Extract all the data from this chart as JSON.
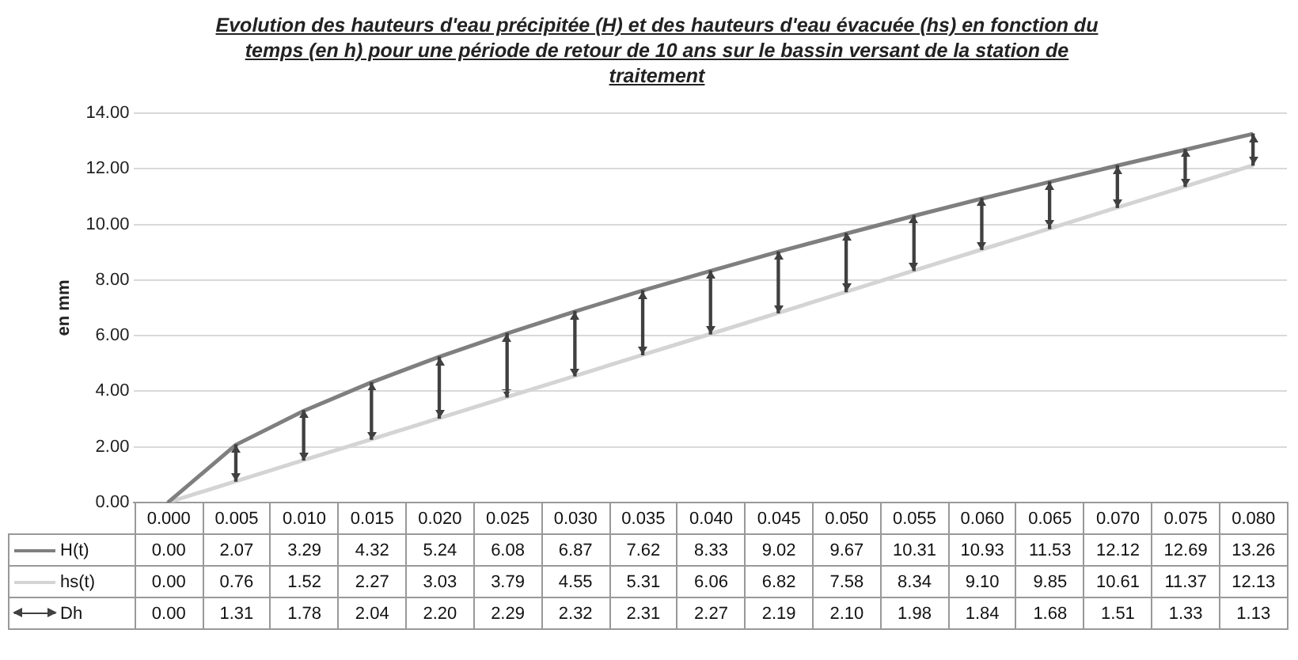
{
  "chart_data": {
    "type": "line",
    "title": "Evolution des hauteurs d'eau précipitée (H) et des hauteurs d'eau évacuée (hs) en fonction du temps  (en h) pour une période de retour de 10 ans sur le bassin versant de la station de traitement",
    "ylabel": "en mm",
    "categories": [
      "0.000",
      "0.005",
      "0.010",
      "0.015",
      "0.020",
      "0.025",
      "0.030",
      "0.035",
      "0.040",
      "0.045",
      "0.050",
      "0.055",
      "0.060",
      "0.065",
      "0.070",
      "0.075",
      "0.080"
    ],
    "series": [
      {
        "name": "H(t)",
        "color": "#7f7f7f",
        "values": [
          0.0,
          2.07,
          3.29,
          4.32,
          5.24,
          6.08,
          6.87,
          7.62,
          8.33,
          9.02,
          9.67,
          10.31,
          10.93,
          11.53,
          12.12,
          12.69,
          13.26
        ],
        "value_labels": [
          "0.00",
          "2.07",
          "3.29",
          "4.32",
          "5.24",
          "6.08",
          "6.87",
          "7.62",
          "8.33",
          "9.02",
          "9.67",
          "10.31",
          "10.93",
          "11.53",
          "12.12",
          "12.69",
          "13.26"
        ]
      },
      {
        "name": "hs(t)",
        "color": "#d4d4d4",
        "values": [
          0.0,
          0.76,
          1.52,
          2.27,
          3.03,
          3.79,
          4.55,
          5.31,
          6.06,
          6.82,
          7.58,
          8.34,
          9.1,
          9.85,
          10.61,
          11.37,
          12.13
        ],
        "value_labels": [
          "0.00",
          "0.76",
          "1.52",
          "2.27",
          "3.03",
          "3.79",
          "4.55",
          "5.31",
          "6.06",
          "6.82",
          "7.58",
          "8.34",
          "9.10",
          "9.85",
          "10.61",
          "11.37",
          "12.13"
        ]
      },
      {
        "name": "Dh",
        "type": "bar",
        "color": "#404040",
        "base": [
          0.0,
          0.76,
          1.52,
          2.27,
          3.03,
          3.79,
          4.55,
          5.31,
          6.06,
          6.82,
          7.58,
          8.34,
          9.1,
          9.85,
          10.61,
          11.37,
          12.13
        ],
        "values": [
          0.0,
          1.31,
          1.78,
          2.04,
          2.2,
          2.29,
          2.32,
          2.31,
          2.27,
          2.19,
          2.1,
          1.98,
          1.84,
          1.68,
          1.51,
          1.33,
          1.13
        ],
        "value_labels": [
          "0.00",
          "1.31",
          "1.78",
          "2.04",
          "2.20",
          "2.29",
          "2.32",
          "2.31",
          "2.27",
          "2.19",
          "2.10",
          "1.98",
          "1.84",
          "1.68",
          "1.51",
          "1.33",
          "1.13"
        ]
      }
    ],
    "ylim": [
      0,
      14
    ],
    "yticks": [
      {
        "value": 0,
        "label": "0.00"
      },
      {
        "value": 2,
        "label": "2.00"
      },
      {
        "value": 4,
        "label": "4.00"
      },
      {
        "value": 6,
        "label": "6.00"
      },
      {
        "value": 8,
        "label": "8.00"
      },
      {
        "value": 10,
        "label": "10.00"
      },
      {
        "value": 12,
        "label": "12.00"
      },
      {
        "value": 14,
        "label": "14.00"
      }
    ],
    "grid": "y",
    "legend": "bottom",
    "line_style": "solid",
    "marker": "none"
  }
}
